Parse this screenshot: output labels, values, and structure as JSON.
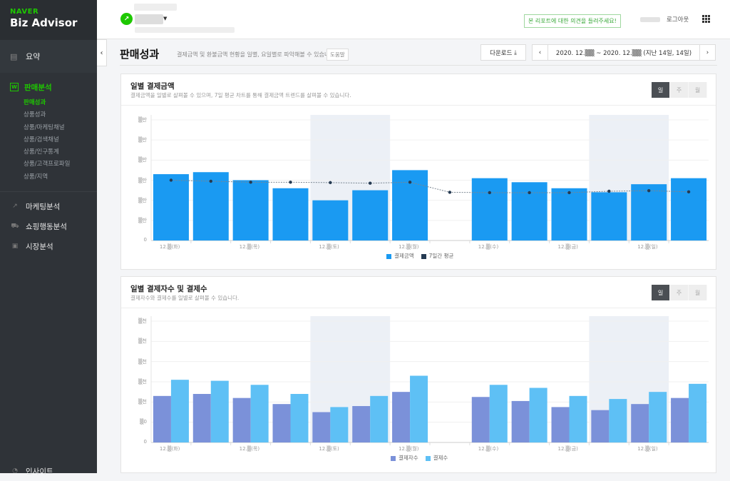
{
  "sidebar": {
    "brand_top": "NAVER",
    "brand_name": "Biz Advisor",
    "summary": "요약",
    "sales_analysis": "판매분석",
    "sub_items": [
      "판매성과",
      "상품성과",
      "상품/마케팅채널",
      "상품/검색채널",
      "상품/인구통계",
      "상품/고객프로파일",
      "상품/지역"
    ],
    "marketing": "마케팅분석",
    "shopping": "쇼핑행동분석",
    "market": "시장분석",
    "insight": "인사이트",
    "accent": "#1ec800"
  },
  "topbar": {
    "feedback": "본 리포트에 대한 의견을 들려주세요!",
    "logout": "로그아웃"
  },
  "page": {
    "title": "판매성과",
    "desc": "결제금액 및 환불금액 현황을 일별, 요일별로 파악해볼 수 있습니다.",
    "help": "도움말",
    "download": "다운로드",
    "date_range": "2020. 12.▒▒ ~ 2020. 12.▒▒ (지난 14일, 14일)"
  },
  "card1": {
    "title": "일별 결제금액",
    "desc": "결제금액을 일별로 살펴볼 수 있으며, 7일 평균 차트를 통해 결제금액 트렌드를 살펴볼 수 있습니다.",
    "seg": [
      "일",
      "주",
      "월"
    ]
  },
  "card2": {
    "title": "일별 결제자수 및 결제수",
    "desc": "결제자수와 결제수를 일별로 살펴볼 수 있습니다.",
    "seg": [
      "일",
      "주",
      "월"
    ]
  },
  "chart_data": [
    {
      "type": "bar",
      "title": "일별 결제금액",
      "categories": [
        "12.▒(화)",
        "",
        "12.▒(목)",
        "",
        "12.▒(토)",
        "",
        "12.▒(월)",
        "",
        "12.▒(수)",
        "",
        "12.▒(금)",
        "",
        "12.▒(일)",
        ""
      ],
      "y_ticks": [
        "0",
        "▒만",
        "▒만",
        "▒만",
        "▒만",
        "▒만",
        "▒만"
      ],
      "series": [
        {
          "name": "결제금액",
          "color": "#1a9af2",
          "values": [
            3.3,
            3.4,
            3.0,
            2.6,
            2.0,
            2.5,
            3.5,
            null,
            3.1,
            2.9,
            2.6,
            2.4,
            2.8,
            3.1
          ]
        },
        {
          "name": "7일간 평균",
          "color": "#253a52",
          "values": [
            3.0,
            2.95,
            2.9,
            2.9,
            2.88,
            2.85,
            2.9,
            2.4,
            2.38,
            2.38,
            2.38,
            2.45,
            2.48,
            2.42
          ]
        }
      ],
      "weekend_bands": [
        [
          4,
          5
        ],
        [
          11,
          12
        ]
      ],
      "ylim": [
        0,
        6
      ]
    },
    {
      "type": "bar",
      "title": "일별 결제자수 및 결제수",
      "categories": [
        "12.▒(화)",
        "",
        "12.▒(목)",
        "",
        "12.▒(토)",
        "",
        "12.▒(월)",
        "",
        "12.▒(수)",
        "",
        "12.▒(금)",
        "",
        "12.▒(일)",
        ""
      ],
      "y_ticks": [
        "0",
        "▒0",
        "▒천",
        "▒천",
        "▒천",
        "▒천",
        "▒천"
      ],
      "series": [
        {
          "name": "결제자수",
          "color": "#7b91d9",
          "values": [
            2.3,
            2.4,
            2.2,
            1.9,
            1.5,
            1.8,
            2.5,
            null,
            2.25,
            2.05,
            1.75,
            1.6,
            1.9,
            2.2
          ]
        },
        {
          "name": "결제수",
          "color": "#5ec0f5",
          "values": [
            3.1,
            3.05,
            2.85,
            2.4,
            1.75,
            2.3,
            3.3,
            null,
            2.85,
            2.7,
            2.3,
            2.15,
            2.5,
            2.9
          ]
        }
      ],
      "weekend_bands": [
        [
          4,
          5
        ],
        [
          11,
          12
        ]
      ],
      "ylim": [
        0,
        6
      ]
    }
  ]
}
